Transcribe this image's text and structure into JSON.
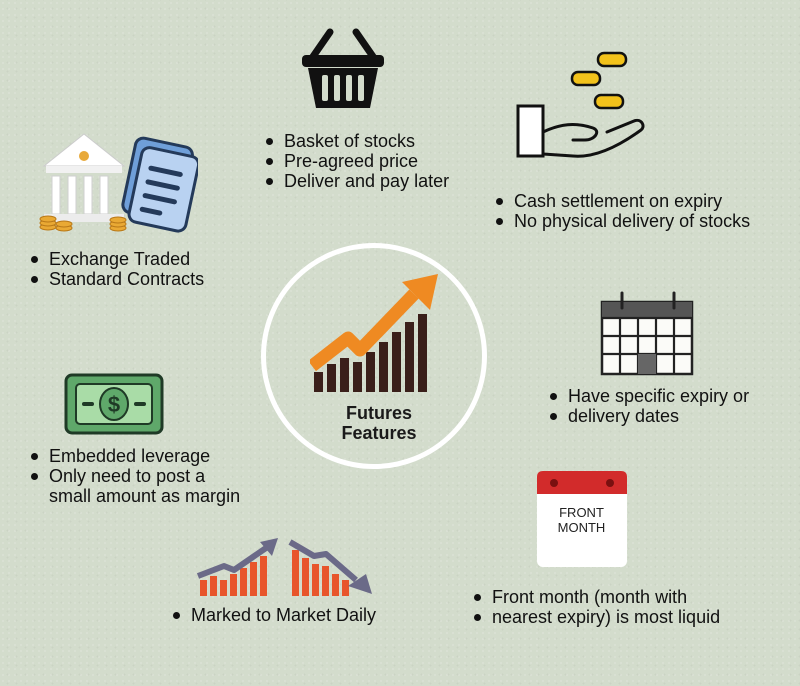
{
  "center": {
    "title_line1": "Futures",
    "title_line2": "Features"
  },
  "features": {
    "basket": {
      "bullets": [
        "Basket of stocks",
        "Pre-agreed price",
        "Deliver and pay later"
      ],
      "icon": "basket-icon"
    },
    "cash": {
      "bullets": [
        "Cash settlement on expiry",
        "No physical delivery of stocks"
      ],
      "icon": "hand-coins-icon"
    },
    "exchange": {
      "bullets": [
        "Exchange Traded",
        "Standard Contracts"
      ],
      "icon": "bank-document-icon"
    },
    "expiry": {
      "bullets": [
        "Have specific expiry or",
        "delivery dates"
      ],
      "icon": "calendar-icon"
    },
    "leverage": {
      "bullets": [
        "Embedded leverage",
        "Only need to post a",
        "small amount as margin"
      ],
      "icon": "dollar-bill-icon"
    },
    "mtm": {
      "bullets": [
        "Marked to Market Daily"
      ],
      "icon": "up-down-chart-icon"
    },
    "front_month": {
      "bullets": [
        "Front month (month with",
        "nearest expiry) is most liquid"
      ],
      "icon": "calendar-page-icon",
      "calendar_line1": "FRONT",
      "calendar_line2": "MONTH"
    }
  },
  "colors": {
    "background": "#d3dccc",
    "orange": "#ef8a22",
    "dark": "#3a1f1a",
    "calendar_red": "#d22b2b",
    "money_green": "#5fa86a"
  }
}
